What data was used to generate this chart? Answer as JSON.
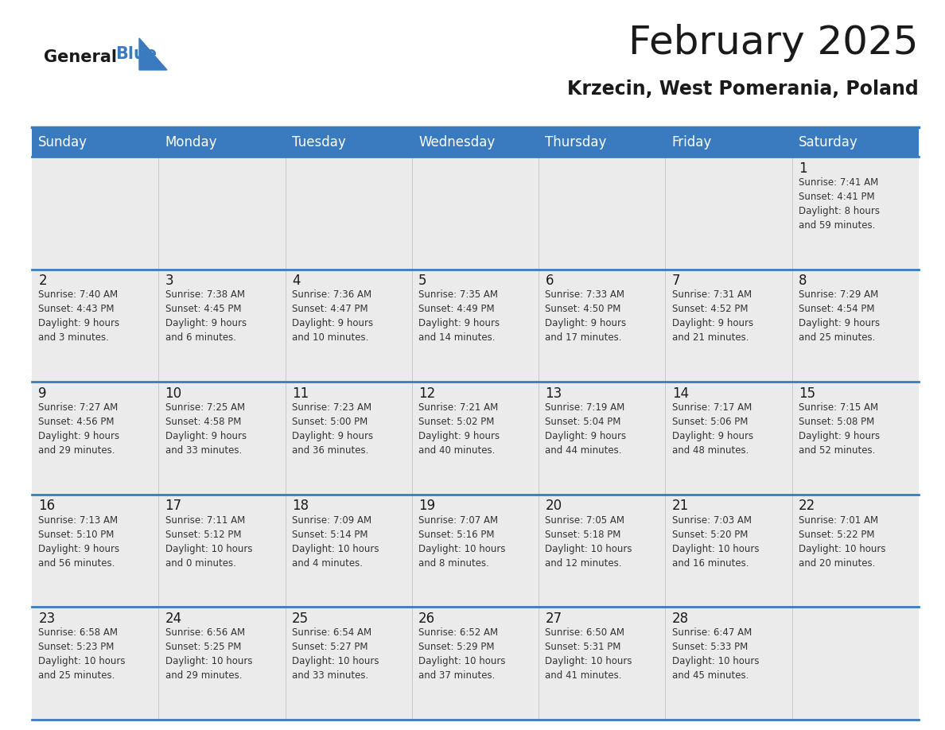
{
  "title": "February 2025",
  "subtitle": "Krzecin, West Pomerania, Poland",
  "header_color": "#3a7bbf",
  "header_text_color": "#ffffff",
  "cell_bg_color": "#ebebeb",
  "border_color": "#3a7bbf",
  "day_names": [
    "Sunday",
    "Monday",
    "Tuesday",
    "Wednesday",
    "Thursday",
    "Friday",
    "Saturday"
  ],
  "weeks": [
    [
      {
        "day": null,
        "info": null
      },
      {
        "day": null,
        "info": null
      },
      {
        "day": null,
        "info": null
      },
      {
        "day": null,
        "info": null
      },
      {
        "day": null,
        "info": null
      },
      {
        "day": null,
        "info": null
      },
      {
        "day": 1,
        "info": "Sunrise: 7:41 AM\nSunset: 4:41 PM\nDaylight: 8 hours\nand 59 minutes."
      }
    ],
    [
      {
        "day": 2,
        "info": "Sunrise: 7:40 AM\nSunset: 4:43 PM\nDaylight: 9 hours\nand 3 minutes."
      },
      {
        "day": 3,
        "info": "Sunrise: 7:38 AM\nSunset: 4:45 PM\nDaylight: 9 hours\nand 6 minutes."
      },
      {
        "day": 4,
        "info": "Sunrise: 7:36 AM\nSunset: 4:47 PM\nDaylight: 9 hours\nand 10 minutes."
      },
      {
        "day": 5,
        "info": "Sunrise: 7:35 AM\nSunset: 4:49 PM\nDaylight: 9 hours\nand 14 minutes."
      },
      {
        "day": 6,
        "info": "Sunrise: 7:33 AM\nSunset: 4:50 PM\nDaylight: 9 hours\nand 17 minutes."
      },
      {
        "day": 7,
        "info": "Sunrise: 7:31 AM\nSunset: 4:52 PM\nDaylight: 9 hours\nand 21 minutes."
      },
      {
        "day": 8,
        "info": "Sunrise: 7:29 AM\nSunset: 4:54 PM\nDaylight: 9 hours\nand 25 minutes."
      }
    ],
    [
      {
        "day": 9,
        "info": "Sunrise: 7:27 AM\nSunset: 4:56 PM\nDaylight: 9 hours\nand 29 minutes."
      },
      {
        "day": 10,
        "info": "Sunrise: 7:25 AM\nSunset: 4:58 PM\nDaylight: 9 hours\nand 33 minutes."
      },
      {
        "day": 11,
        "info": "Sunrise: 7:23 AM\nSunset: 5:00 PM\nDaylight: 9 hours\nand 36 minutes."
      },
      {
        "day": 12,
        "info": "Sunrise: 7:21 AM\nSunset: 5:02 PM\nDaylight: 9 hours\nand 40 minutes."
      },
      {
        "day": 13,
        "info": "Sunrise: 7:19 AM\nSunset: 5:04 PM\nDaylight: 9 hours\nand 44 minutes."
      },
      {
        "day": 14,
        "info": "Sunrise: 7:17 AM\nSunset: 5:06 PM\nDaylight: 9 hours\nand 48 minutes."
      },
      {
        "day": 15,
        "info": "Sunrise: 7:15 AM\nSunset: 5:08 PM\nDaylight: 9 hours\nand 52 minutes."
      }
    ],
    [
      {
        "day": 16,
        "info": "Sunrise: 7:13 AM\nSunset: 5:10 PM\nDaylight: 9 hours\nand 56 minutes."
      },
      {
        "day": 17,
        "info": "Sunrise: 7:11 AM\nSunset: 5:12 PM\nDaylight: 10 hours\nand 0 minutes."
      },
      {
        "day": 18,
        "info": "Sunrise: 7:09 AM\nSunset: 5:14 PM\nDaylight: 10 hours\nand 4 minutes."
      },
      {
        "day": 19,
        "info": "Sunrise: 7:07 AM\nSunset: 5:16 PM\nDaylight: 10 hours\nand 8 minutes."
      },
      {
        "day": 20,
        "info": "Sunrise: 7:05 AM\nSunset: 5:18 PM\nDaylight: 10 hours\nand 12 minutes."
      },
      {
        "day": 21,
        "info": "Sunrise: 7:03 AM\nSunset: 5:20 PM\nDaylight: 10 hours\nand 16 minutes."
      },
      {
        "day": 22,
        "info": "Sunrise: 7:01 AM\nSunset: 5:22 PM\nDaylight: 10 hours\nand 20 minutes."
      }
    ],
    [
      {
        "day": 23,
        "info": "Sunrise: 6:58 AM\nSunset: 5:23 PM\nDaylight: 10 hours\nand 25 minutes."
      },
      {
        "day": 24,
        "info": "Sunrise: 6:56 AM\nSunset: 5:25 PM\nDaylight: 10 hours\nand 29 minutes."
      },
      {
        "day": 25,
        "info": "Sunrise: 6:54 AM\nSunset: 5:27 PM\nDaylight: 10 hours\nand 33 minutes."
      },
      {
        "day": 26,
        "info": "Sunrise: 6:52 AM\nSunset: 5:29 PM\nDaylight: 10 hours\nand 37 minutes."
      },
      {
        "day": 27,
        "info": "Sunrise: 6:50 AM\nSunset: 5:31 PM\nDaylight: 10 hours\nand 41 minutes."
      },
      {
        "day": 28,
        "info": "Sunrise: 6:47 AM\nSunset: 5:33 PM\nDaylight: 10 hours\nand 45 minutes."
      },
      {
        "day": null,
        "info": null
      }
    ]
  ],
  "logo_general_color": "#1a1a1a",
  "logo_blue_color": "#3a7bbf",
  "logo_triangle_color": "#3a7bbf",
  "title_fontsize": 36,
  "subtitle_fontsize": 17,
  "header_fontsize": 12,
  "day_num_fontsize": 12,
  "info_fontsize": 8.5
}
